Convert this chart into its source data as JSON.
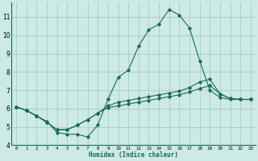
{
  "xlabel": "Humidex (Indice chaleur)",
  "bg_color": "#cdeae4",
  "grid_color": "#aaccc6",
  "line_color": "#1a6b5a",
  "xlim": [
    -0.5,
    23.5
  ],
  "ylim": [
    4,
    11.8
  ],
  "yticks": [
    4,
    5,
    6,
    7,
    8,
    9,
    10,
    11
  ],
  "xticks": [
    0,
    1,
    2,
    3,
    4,
    5,
    6,
    7,
    8,
    9,
    10,
    11,
    12,
    13,
    14,
    15,
    16,
    17,
    18,
    19,
    20,
    21,
    22,
    23
  ],
  "xtick_labels": [
    "0",
    "1",
    "2",
    "3",
    "4",
    "5",
    "6",
    "7",
    "8",
    "9",
    "10",
    "11",
    "12",
    "13",
    "14",
    "15",
    "16",
    "17",
    "18",
    "19",
    "20",
    "21",
    "22",
    "23"
  ],
  "series": [
    {
      "x": [
        0,
        1,
        2,
        3,
        4,
        5,
        6,
        7,
        8,
        9,
        10,
        11,
        12,
        13,
        14,
        15,
        16,
        17,
        18,
        19,
        20,
        21,
        22,
        23
      ],
      "y": [
        6.1,
        5.9,
        5.6,
        5.3,
        4.7,
        4.6,
        4.6,
        4.45,
        5.1,
        6.5,
        7.7,
        8.1,
        9.4,
        10.3,
        10.6,
        11.4,
        11.1,
        10.4,
        8.6,
        7.0,
        6.6,
        6.5,
        6.5,
        6.5
      ]
    },
    {
      "x": [
        0,
        1,
        2,
        3,
        4,
        5,
        6,
        7,
        8,
        9,
        10,
        11,
        12,
        13,
        14,
        15,
        16,
        17,
        18,
        19,
        20,
        21,
        22,
        23
      ],
      "y": [
        6.1,
        5.9,
        5.6,
        5.25,
        4.85,
        4.85,
        5.1,
        5.4,
        5.75,
        6.05,
        6.15,
        6.25,
        6.35,
        6.45,
        6.55,
        6.65,
        6.75,
        6.9,
        7.1,
        7.25,
        6.8,
        6.55,
        6.5,
        6.5
      ]
    },
    {
      "x": [
        0,
        1,
        2,
        3,
        4,
        5,
        6,
        7,
        8,
        9,
        10,
        11,
        12,
        13,
        14,
        15,
        16,
        17,
        18,
        19,
        20,
        21,
        22,
        23
      ],
      "y": [
        6.1,
        5.9,
        5.6,
        5.25,
        4.85,
        4.85,
        5.1,
        5.4,
        5.75,
        6.15,
        6.35,
        6.45,
        6.55,
        6.65,
        6.75,
        6.85,
        6.95,
        7.15,
        7.45,
        7.6,
        6.8,
        6.55,
        6.5,
        6.5
      ]
    }
  ]
}
